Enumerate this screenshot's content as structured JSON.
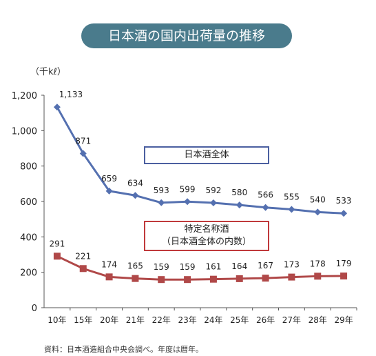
{
  "title": "日本酒の国内出荷量の推移",
  "unit_label": "（千kℓ）",
  "legend": {
    "all_label": "日本酒全体",
    "special_label_line1": "特定名称酒",
    "special_label_line2": "（日本酒全体の内数）"
  },
  "source_note": "資料：日本酒造組合中央会調べ。年度は暦年。",
  "colors": {
    "all": "#5470b0",
    "special": "#b04848",
    "title_bg": "#4a7b8c"
  },
  "chart_data": {
    "type": "line",
    "categories": [
      "10年",
      "15年",
      "20年",
      "21年",
      "22年",
      "23年",
      "24年",
      "25年",
      "26年",
      "27年",
      "28年",
      "29年"
    ],
    "series": [
      {
        "name": "日本酒全体",
        "values": [
          1133,
          871,
          659,
          634,
          593,
          599,
          592,
          580,
          566,
          555,
          540,
          533
        ]
      },
      {
        "name": "特定名称酒",
        "values": [
          291,
          221,
          174,
          165,
          159,
          159,
          161,
          164,
          167,
          173,
          178,
          179
        ]
      }
    ],
    "value_labels_all": [
      "1,133",
      "871",
      "659",
      "634",
      "593",
      "599",
      "592",
      "580",
      "566",
      "555",
      "540",
      "533"
    ],
    "value_labels_special": [
      "291",
      "221",
      "174",
      "165",
      "159",
      "159",
      "161",
      "164",
      "167",
      "173",
      "178",
      "179"
    ],
    "ylim": [
      0,
      1200
    ],
    "yticks": [
      "0",
      "200",
      "400",
      "600",
      "800",
      "1,000",
      "1,200"
    ],
    "grid": false
  }
}
